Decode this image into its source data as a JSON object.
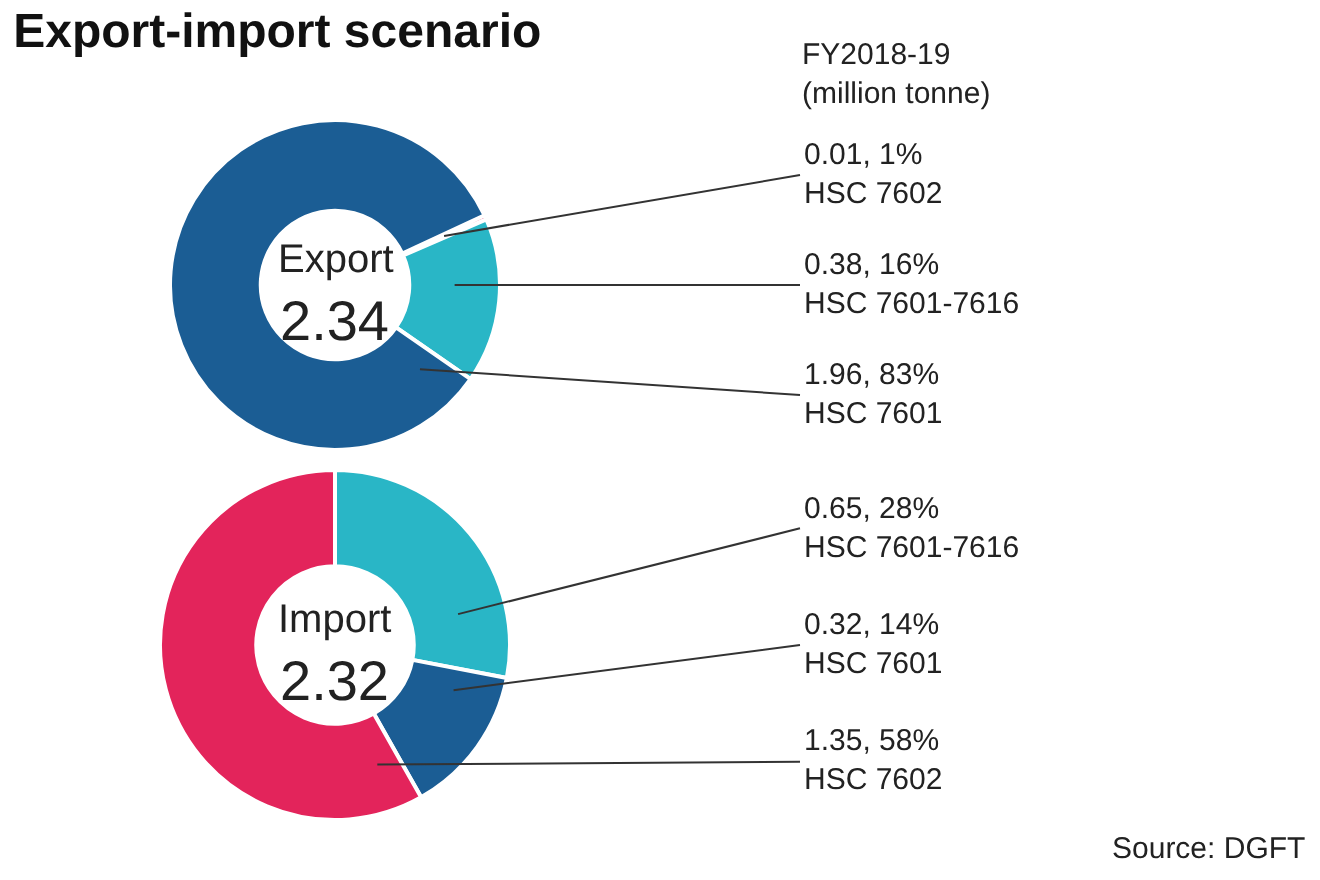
{
  "chart_data": [
    {
      "type": "donut",
      "title": "Export-import scenario",
      "subtitle": "FY2018-19 (million tonne)",
      "annotations": [
        "Export",
        "2.34"
      ],
      "categories": [
        "HSC 7602",
        "HSC 7601-7616",
        "HSC 7601"
      ],
      "values": [
        0.01,
        0.38,
        1.96
      ],
      "value_labels": [
        "0.01, 1%",
        "0.38, 16%",
        "1.96, 83%"
      ],
      "colors": [
        "#e3245b",
        "#29b6c6",
        "#1b5d94"
      ]
    },
    {
      "type": "donut",
      "annotations": [
        "Import",
        "2.32",
        "Source: DGFT"
      ],
      "categories": [
        "HSC 7601-7616",
        "HSC 7601",
        "HSC 7602"
      ],
      "values": [
        0.65,
        0.32,
        1.35
      ],
      "value_labels": [
        "0.65, 28%",
        "0.32, 14%",
        "1.35, 58%"
      ],
      "colors": [
        "#29b6c6",
        "#1b5d94",
        "#e3245b"
      ]
    }
  ]
}
